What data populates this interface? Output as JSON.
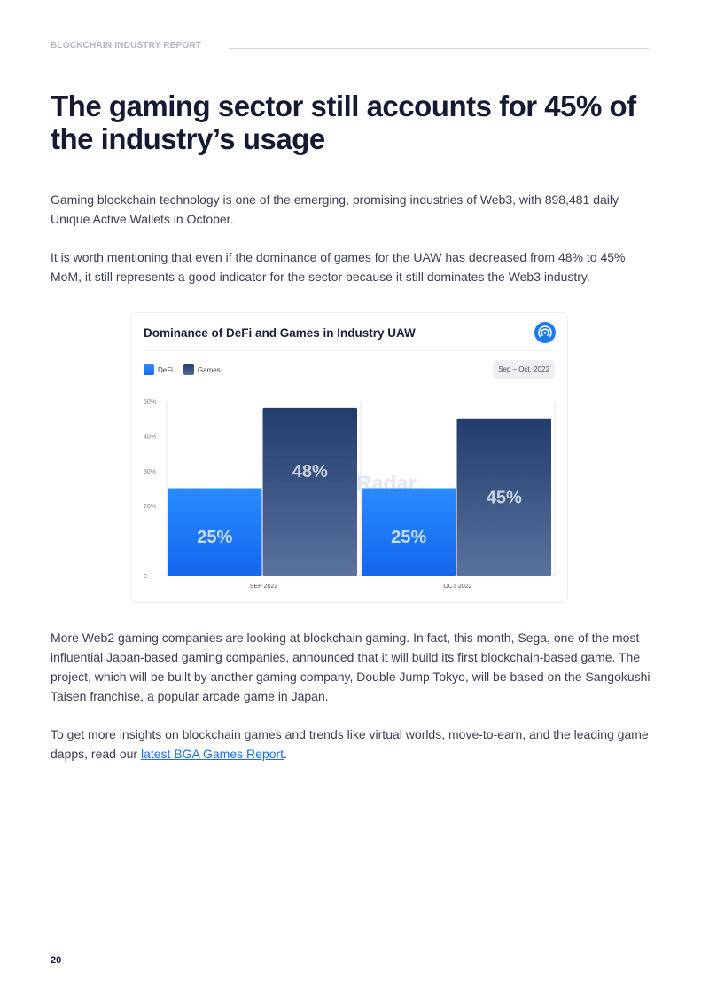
{
  "header": {
    "label": "BLOCKCHAIN INDUSTRY REPORT"
  },
  "title": "The gaming sector still accounts for 45% of the industry’s usage",
  "paragraphs": {
    "p1": "Gaming blockchain technology is one of the emerging, promising industries of Web3, with 898,481 daily Unique Active Wallets in October.",
    "p2": "It is worth mentioning that even if the dominance of games for the UAW has decreased from 48% to 45% MoM, it still represents a good indicator for the sector because it still dominates the Web3 industry.",
    "p3": "More Web2 gaming companies are looking at blockchain gaming. In fact, this month, Sega, one of the most influential Japan-based gaming companies, announced that it will build its first blockchain-based game. The project, which will be built by another gaming company, Double Jump Tokyo, will be based on the Sangokushi Taisen franchise, a popular arcade game in Japan.",
    "p4_before": "To get more insights on blockchain games and trends like virtual worlds, move-to-earn, and the leading game dapps, read our ",
    "p4_link": "latest BGA Games Report",
    "p4_after": "."
  },
  "chart_data": {
    "type": "bar",
    "title": "Dominance of DeFi and Games in Industry UAW",
    "date_range": "Sep – Oct, 2022",
    "watermark": "DappRadar",
    "categories": [
      "SEP 2022",
      "OCT 2022"
    ],
    "series": [
      {
        "name": "DeFi",
        "values": [
          25,
          25
        ],
        "labels": [
          "25%",
          "25%"
        ],
        "color": "#1a7af2"
      },
      {
        "name": "Games",
        "values": [
          48,
          45
        ],
        "labels": [
          "48%",
          "45%"
        ],
        "color": "#2c4677"
      }
    ],
    "yticks": [
      "0",
      "20%",
      "30%",
      "40%",
      "50%"
    ],
    "ytick_values": [
      0,
      20,
      30,
      40,
      50
    ],
    "ylim": [
      0,
      50
    ],
    "legend": "top-left",
    "grid": false
  },
  "page_number": "20",
  "icons": {
    "brand": "dappradar-logo-icon"
  }
}
